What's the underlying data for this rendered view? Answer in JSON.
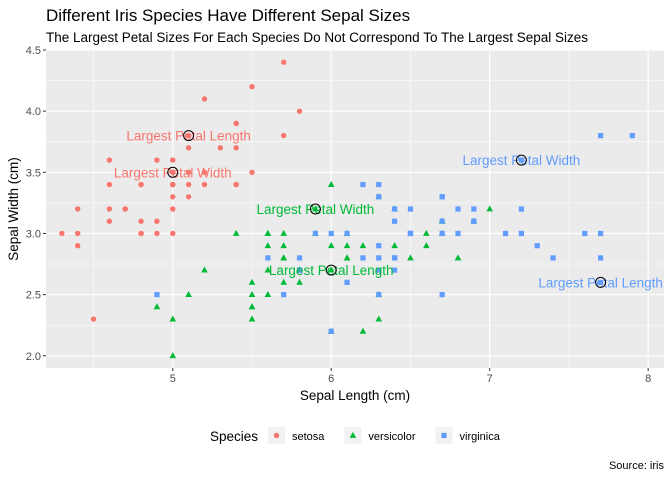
{
  "chart_data": {
    "type": "scatter",
    "title": "Different Iris Species Have Different Sepal Sizes",
    "subtitle": "The Largest Petal Sizes For Each Species Do Not Correspond To The Largest Sepal Sizes",
    "caption": "Source: iris",
    "xlabel": "Sepal Length (cm)",
    "ylabel": "Sepal Width (cm)",
    "xlim": [
      4.2,
      8.1
    ],
    "ylim": [
      1.9,
      4.5
    ],
    "xticks": [
      "5",
      "6",
      "7",
      "8"
    ],
    "yticks": [
      "2.0",
      "2.5",
      "3.0",
      "3.5",
      "4.0",
      "4.5"
    ],
    "grid": true,
    "legend": {
      "title": "Species",
      "position": "bottom"
    },
    "series": [
      {
        "name": "setosa",
        "color": "#F8766D",
        "shape": "circle",
        "points": [
          [
            5.1,
            3.5
          ],
          [
            4.9,
            3.0
          ],
          [
            4.7,
            3.2
          ],
          [
            4.6,
            3.1
          ],
          [
            5.0,
            3.6
          ],
          [
            5.4,
            3.9
          ],
          [
            4.6,
            3.4
          ],
          [
            5.0,
            3.4
          ],
          [
            4.4,
            2.9
          ],
          [
            4.9,
            3.1
          ],
          [
            5.4,
            3.7
          ],
          [
            4.8,
            3.4
          ],
          [
            4.8,
            3.0
          ],
          [
            4.3,
            3.0
          ],
          [
            5.8,
            4.0
          ],
          [
            5.7,
            4.4
          ],
          [
            5.4,
            3.9
          ],
          [
            5.1,
            3.5
          ],
          [
            5.7,
            3.8
          ],
          [
            5.1,
            3.8
          ],
          [
            5.4,
            3.4
          ],
          [
            5.1,
            3.7
          ],
          [
            4.6,
            3.6
          ],
          [
            5.1,
            3.3
          ],
          [
            4.8,
            3.4
          ],
          [
            5.0,
            3.0
          ],
          [
            5.0,
            3.4
          ],
          [
            5.2,
            3.5
          ],
          [
            5.2,
            3.4
          ],
          [
            4.7,
            3.2
          ],
          [
            4.8,
            3.1
          ],
          [
            5.4,
            3.4
          ],
          [
            5.2,
            4.1
          ],
          [
            5.5,
            4.2
          ],
          [
            4.9,
            3.1
          ],
          [
            5.0,
            3.2
          ],
          [
            5.5,
            3.5
          ],
          [
            4.9,
            3.6
          ],
          [
            4.4,
            3.0
          ],
          [
            5.1,
            3.4
          ],
          [
            5.0,
            3.5
          ],
          [
            4.5,
            2.3
          ],
          [
            4.4,
            3.2
          ],
          [
            5.0,
            3.5
          ],
          [
            5.1,
            3.8
          ],
          [
            4.8,
            3.0
          ],
          [
            5.1,
            3.8
          ],
          [
            4.6,
            3.2
          ],
          [
            5.3,
            3.7
          ],
          [
            5.0,
            3.3
          ]
        ]
      },
      {
        "name": "versicolor",
        "color": "#00BA38",
        "shape": "triangle",
        "points": [
          [
            7.0,
            3.2
          ],
          [
            6.4,
            3.2
          ],
          [
            6.9,
            3.1
          ],
          [
            5.5,
            2.3
          ],
          [
            6.5,
            2.8
          ],
          [
            5.7,
            2.8
          ],
          [
            6.3,
            3.3
          ],
          [
            4.9,
            2.4
          ],
          [
            6.6,
            2.9
          ],
          [
            5.2,
            2.7
          ],
          [
            5.0,
            2.0
          ],
          [
            5.9,
            3.0
          ],
          [
            6.0,
            2.2
          ],
          [
            6.1,
            2.9
          ],
          [
            5.6,
            2.9
          ],
          [
            6.7,
            3.1
          ],
          [
            5.6,
            3.0
          ],
          [
            5.8,
            2.7
          ],
          [
            6.2,
            2.2
          ],
          [
            5.6,
            2.5
          ],
          [
            5.9,
            3.2
          ],
          [
            6.1,
            2.8
          ],
          [
            6.3,
            2.5
          ],
          [
            6.1,
            2.8
          ],
          [
            6.4,
            2.9
          ],
          [
            6.6,
            3.0
          ],
          [
            6.8,
            2.8
          ],
          [
            6.7,
            3.0
          ],
          [
            6.0,
            2.9
          ],
          [
            5.7,
            2.6
          ],
          [
            5.5,
            2.4
          ],
          [
            5.5,
            2.4
          ],
          [
            5.8,
            2.7
          ],
          [
            6.0,
            2.7
          ],
          [
            5.4,
            3.0
          ],
          [
            6.0,
            3.4
          ],
          [
            6.7,
            3.1
          ],
          [
            6.3,
            2.3
          ],
          [
            5.6,
            3.0
          ],
          [
            5.5,
            2.5
          ],
          [
            5.5,
            2.6
          ],
          [
            6.1,
            3.0
          ],
          [
            5.8,
            2.6
          ],
          [
            5.0,
            2.3
          ],
          [
            5.6,
            2.7
          ],
          [
            5.7,
            3.0
          ],
          [
            5.7,
            2.9
          ],
          [
            6.2,
            2.9
          ],
          [
            5.1,
            2.5
          ],
          [
            5.7,
            2.8
          ]
        ]
      },
      {
        "name": "virginica",
        "color": "#619CFF",
        "shape": "square",
        "points": [
          [
            6.3,
            3.3
          ],
          [
            5.8,
            2.7
          ],
          [
            7.1,
            3.0
          ],
          [
            6.3,
            2.9
          ],
          [
            6.5,
            3.0
          ],
          [
            7.6,
            3.0
          ],
          [
            4.9,
            2.5
          ],
          [
            7.3,
            2.9
          ],
          [
            6.7,
            2.5
          ],
          [
            7.2,
            3.6
          ],
          [
            6.5,
            3.2
          ],
          [
            6.4,
            2.7
          ],
          [
            6.8,
            3.0
          ],
          [
            5.7,
            2.5
          ],
          [
            5.8,
            2.8
          ],
          [
            6.4,
            3.2
          ],
          [
            6.5,
            3.0
          ],
          [
            7.7,
            3.8
          ],
          [
            7.7,
            2.6
          ],
          [
            6.0,
            2.2
          ],
          [
            6.9,
            3.2
          ],
          [
            5.6,
            2.8
          ],
          [
            7.7,
            2.8
          ],
          [
            6.3,
            2.7
          ],
          [
            6.7,
            3.3
          ],
          [
            7.2,
            3.2
          ],
          [
            6.2,
            2.8
          ],
          [
            6.1,
            3.0
          ],
          [
            6.4,
            2.8
          ],
          [
            7.2,
            3.0
          ],
          [
            7.4,
            2.8
          ],
          [
            7.9,
            3.8
          ],
          [
            6.4,
            2.8
          ],
          [
            6.3,
            2.8
          ],
          [
            6.1,
            2.6
          ],
          [
            7.7,
            3.0
          ],
          [
            6.3,
            3.4
          ],
          [
            6.4,
            3.1
          ],
          [
            6.0,
            3.0
          ],
          [
            6.9,
            3.1
          ],
          [
            6.7,
            3.1
          ],
          [
            6.9,
            3.1
          ],
          [
            5.8,
            2.7
          ],
          [
            6.8,
            3.2
          ],
          [
            6.7,
            3.3
          ],
          [
            6.7,
            3.0
          ],
          [
            6.3,
            2.5
          ],
          [
            6.5,
            3.0
          ],
          [
            6.2,
            3.4
          ],
          [
            5.9,
            3.0
          ]
        ]
      }
    ],
    "annotations": [
      {
        "text": "Largest Petal Length",
        "series": "setosa",
        "x": 5.1,
        "y": 3.8
      },
      {
        "text": "Largest Petal Width",
        "series": "setosa",
        "x": 5.0,
        "y": 3.5
      },
      {
        "text": "Largest Petal Width",
        "series": "versicolor",
        "x": 5.9,
        "y": 3.2
      },
      {
        "text": "Largest Petal Length",
        "series": "versicolor",
        "x": 6.0,
        "y": 2.7
      },
      {
        "text": "Largest Petal Width",
        "series": "virginica",
        "x": 7.2,
        "y": 3.6
      },
      {
        "text": "Largest Petal Length",
        "series": "virginica",
        "x": 7.7,
        "y": 2.6
      }
    ]
  }
}
